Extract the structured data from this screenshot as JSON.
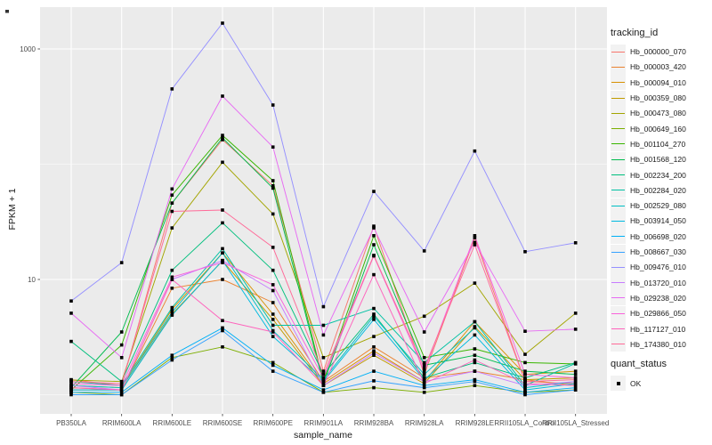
{
  "figure": {
    "y_axis": {
      "label": "FPKM + 1",
      "tick_labels": [
        "1000",
        "10"
      ],
      "tick_color": "#4d4d4d"
    },
    "x_axis": {
      "label": "sample_name"
    },
    "legend": {
      "tracking_title": "tracking_id",
      "quant_title": "quant_status",
      "quant_items": [
        {
          "label": "OK",
          "marker": "black-square"
        }
      ]
    },
    "colors": {
      "panel_bg": "#EBEBEB",
      "gridline": "#FFFFFF",
      "point": "#000000",
      "tick_text": "#4d4d4d"
    }
  },
  "chart_data": {
    "type": "line",
    "title": "",
    "xlabel": "sample_name",
    "ylabel": "FPKM + 1",
    "x_categories": [
      "PB350LA",
      "RRIM600LA",
      "RRIM600LE",
      "RRIM600SE",
      "RRIM600PE",
      "RRIM901LA",
      "RRIM928BA",
      "RRIM928LA",
      "RRIM928LE",
      "RRII105LA_Control",
      "RRII105LA_Stressed"
    ],
    "y_scale": {
      "type": "log10",
      "major_breaks": [
        10,
        1000
      ],
      "minor_breaks": [
        1,
        100
      ]
    },
    "legend_title": "tracking_id",
    "marker": "black-square",
    "quant_status": {
      "title": "quant_status",
      "items": [
        "OK"
      ]
    },
    "series": [
      {
        "name": "Hb_000000_070",
        "color": "#F8766D",
        "values": [
          1.35,
          1.2,
          46,
          163,
          65,
          1.6,
          29,
          1.5,
          23,
          1.3,
          1.25
        ]
      },
      {
        "name": "Hb_000003_420",
        "color": "#EA8331",
        "values": [
          1.1,
          1.1,
          8.4,
          10,
          6.3,
          1.3,
          2.6,
          1.4,
          1.6,
          1.35,
          1.2
        ]
      },
      {
        "name": "Hb_000094_010",
        "color": "#D89000",
        "values": [
          1.2,
          1.15,
          5.5,
          17,
          5.0,
          1.25,
          2.4,
          1.3,
          4.3,
          1.5,
          1.6
        ]
      },
      {
        "name": "Hb_000359_080",
        "color": "#C09B00",
        "values": [
          1.15,
          1.1,
          5.0,
          14.5,
          4.5,
          1.2,
          2.2,
          1.25,
          3.9,
          1.35,
          1.4
        ]
      },
      {
        "name": "Hb_000473_080",
        "color": "#A3A500",
        "values": [
          1.34,
          1.3,
          28,
          104,
          37,
          2.1,
          3.2,
          4.8,
          9.3,
          2.24,
          5.1
        ]
      },
      {
        "name": "Hb_000649_160",
        "color": "#7CAE00",
        "values": [
          1.05,
          1.0,
          2.1,
          2.6,
          1.9,
          1.05,
          1.15,
          1.05,
          1.2,
          1.05,
          1.1
        ]
      },
      {
        "name": "Hb_001104_270",
        "color": "#39B600",
        "values": [
          1.1,
          2.7,
          54,
          178,
          72,
          1.3,
          24,
          2.1,
          2.5,
          1.9,
          1.85
        ]
      },
      {
        "name": "Hb_001568_120",
        "color": "#00BB4E",
        "values": [
          1.15,
          3.5,
          46,
          169,
          62,
          1.25,
          20,
          1.8,
          2.2,
          1.6,
          1.5
        ]
      },
      {
        "name": "Hb_002234_200",
        "color": "#00BF7D",
        "values": [
          2.9,
          1.3,
          12,
          31,
          12,
          1.5,
          5.0,
          1.4,
          1.9,
          1.4,
          1.9
        ]
      },
      {
        "name": "Hb_002284_020",
        "color": "#00C1A3",
        "values": [
          1.3,
          1.2,
          5.7,
          18.5,
          4.0,
          4.0,
          5.6,
          1.9,
          4.3,
          1.2,
          1.87
        ]
      },
      {
        "name": "Hb_002529_080",
        "color": "#00BFC4",
        "values": [
          1.2,
          1.15,
          5.2,
          17,
          3.6,
          1.35,
          4.8,
          1.5,
          3.8,
          1.15,
          1.3
        ]
      },
      {
        "name": "Hb_003914_050",
        "color": "#00BAE0",
        "values": [
          1.1,
          1.1,
          4.9,
          14.6,
          3.2,
          1.3,
          4.5,
          1.35,
          3.3,
          1.1,
          1.25
        ]
      },
      {
        "name": "Hb_006698_020",
        "color": "#00B0F6",
        "values": [
          1.05,
          1.05,
          2.2,
          3.8,
          1.8,
          1.1,
          1.6,
          1.2,
          1.35,
          1.05,
          1.15
        ]
      },
      {
        "name": "Hb_008667_030",
        "color": "#35A2FF",
        "values": [
          1.0,
          1.0,
          2.0,
          3.6,
          1.6,
          1.05,
          1.32,
          1.15,
          1.3,
          1.0,
          1.1
        ]
      },
      {
        "name": "Hb_009476_010",
        "color": "#9590FF",
        "values": [
          6.5,
          14,
          450,
          1675,
          326,
          5.8,
          58,
          17.7,
          130,
          17.4,
          20.8
        ]
      },
      {
        "name": "Hb_013720_010",
        "color": "#C77CFF",
        "values": [
          1.2,
          1.1,
          10,
          14.6,
          8.0,
          1.2,
          2.3,
          1.3,
          1.6,
          1.2,
          1.3
        ]
      },
      {
        "name": "Hb_029238_020",
        "color": "#E76BF3",
        "values": [
          5.1,
          2.1,
          61,
          390,
          141,
          3.3,
          28,
          3.5,
          21,
          3.55,
          3.7
        ]
      },
      {
        "name": "Hb_029866_050",
        "color": "#FA62DB",
        "values": [
          1.25,
          1.2,
          10.5,
          14,
          9.0,
          1.4,
          16,
          1.6,
          24,
          1.5,
          1.4
        ]
      },
      {
        "name": "Hb_117127_010",
        "color": "#FF62BC",
        "values": [
          1.15,
          1.1,
          10,
          4.4,
          3.5,
          1.2,
          11,
          1.25,
          2.0,
          1.25,
          1.2
        ]
      },
      {
        "name": "Hb_174380_010",
        "color": "#FF6A98",
        "values": [
          1.3,
          1.25,
          39,
          40,
          19,
          1.5,
          16.2,
          1.7,
          20,
          1.3,
          1.35
        ]
      }
    ]
  }
}
